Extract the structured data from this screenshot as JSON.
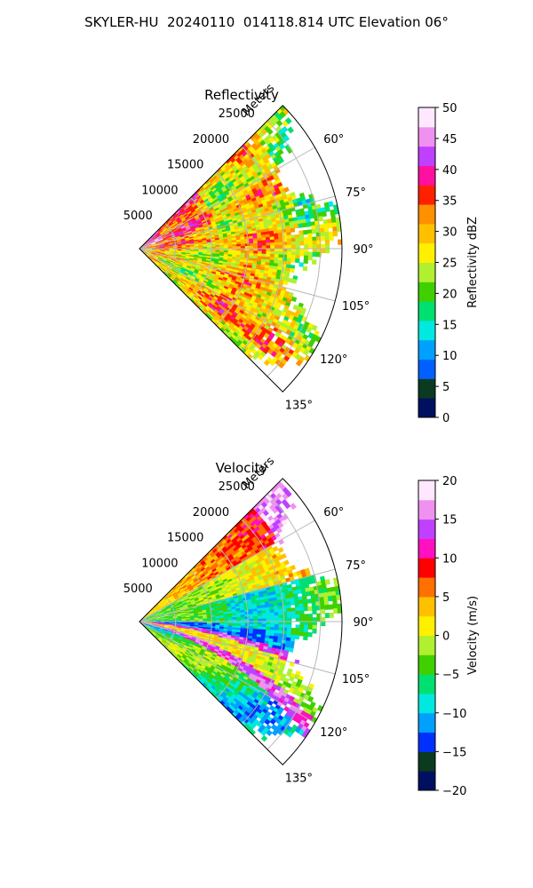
{
  "title": "SKYLER-HU  20240110  014118.814 UTC Elevation 06°",
  "colors": {
    "grid": "#b8b8b8",
    "outline": "#000000"
  },
  "chart_data": [
    {
      "type": "heatmap",
      "projection": "polar-sector",
      "title": "Reflectivity",
      "field": "reflectivity",
      "range_label": "Meters",
      "range_ticks": [
        5000,
        10000,
        15000,
        20000,
        25000
      ],
      "range_tick_labels": [
        "5000",
        "10000",
        "15000",
        "20000",
        "25000"
      ],
      "range_lim": [
        0,
        28000
      ],
      "azimuth_lim": [
        45,
        135
      ],
      "azimuth_ticks": [
        60,
        75,
        90,
        105,
        120,
        135
      ],
      "azimuth_tick_labels": [
        "60°",
        "75°",
        "90°",
        "105°",
        "120°",
        "135°"
      ],
      "grid": true,
      "colorbar": {
        "label": "Reflectivity dBZ",
        "range": [
          0,
          50
        ],
        "ticks": [
          0,
          5,
          10,
          15,
          20,
          25,
          30,
          35,
          40,
          45,
          50
        ],
        "tick_labels": [
          "0",
          "5",
          "10",
          "15",
          "20",
          "25",
          "30",
          "35",
          "40",
          "45",
          "50"
        ],
        "colors": [
          "#001060",
          "#0a3a20",
          "#0060ff",
          "#00a0ff",
          "#00e8e0",
          "#00e070",
          "#40d000",
          "#b0f030",
          "#fff000",
          "#ffc000",
          "#ff9000",
          "#ff2000",
          "#ff10a0",
          "#c040ff",
          "#f090f0",
          "#ffe8ff"
        ]
      }
    },
    {
      "type": "heatmap",
      "projection": "polar-sector",
      "title": "Velocity",
      "field": "velocity",
      "range_label": "Meters",
      "range_ticks": [
        5000,
        10000,
        15000,
        20000,
        25000
      ],
      "range_tick_labels": [
        "5000",
        "10000",
        "15000",
        "20000",
        "25000"
      ],
      "range_lim": [
        0,
        28000
      ],
      "azimuth_lim": [
        45,
        135
      ],
      "azimuth_ticks": [
        60,
        75,
        90,
        105,
        120,
        135
      ],
      "azimuth_tick_labels": [
        "60°",
        "75°",
        "90°",
        "105°",
        "120°",
        "135°"
      ],
      "grid": true,
      "colorbar": {
        "label": "Velocity (m/s)",
        "range": [
          -20,
          20
        ],
        "ticks": [
          -20,
          -15,
          -10,
          -5,
          0,
          5,
          10,
          15,
          20
        ],
        "tick_labels": [
          "−20",
          "−15",
          "−10",
          "−5",
          "0",
          "5",
          "10",
          "15",
          "20"
        ],
        "colors": [
          "#001060",
          "#0a3a20",
          "#0030ff",
          "#00a0ff",
          "#00e8e0",
          "#00e070",
          "#40d000",
          "#b0f030",
          "#fff000",
          "#ffc000",
          "#ff7000",
          "#ff0000",
          "#ff10c0",
          "#c040ff",
          "#f090f0",
          "#ffe8ff"
        ]
      }
    }
  ]
}
